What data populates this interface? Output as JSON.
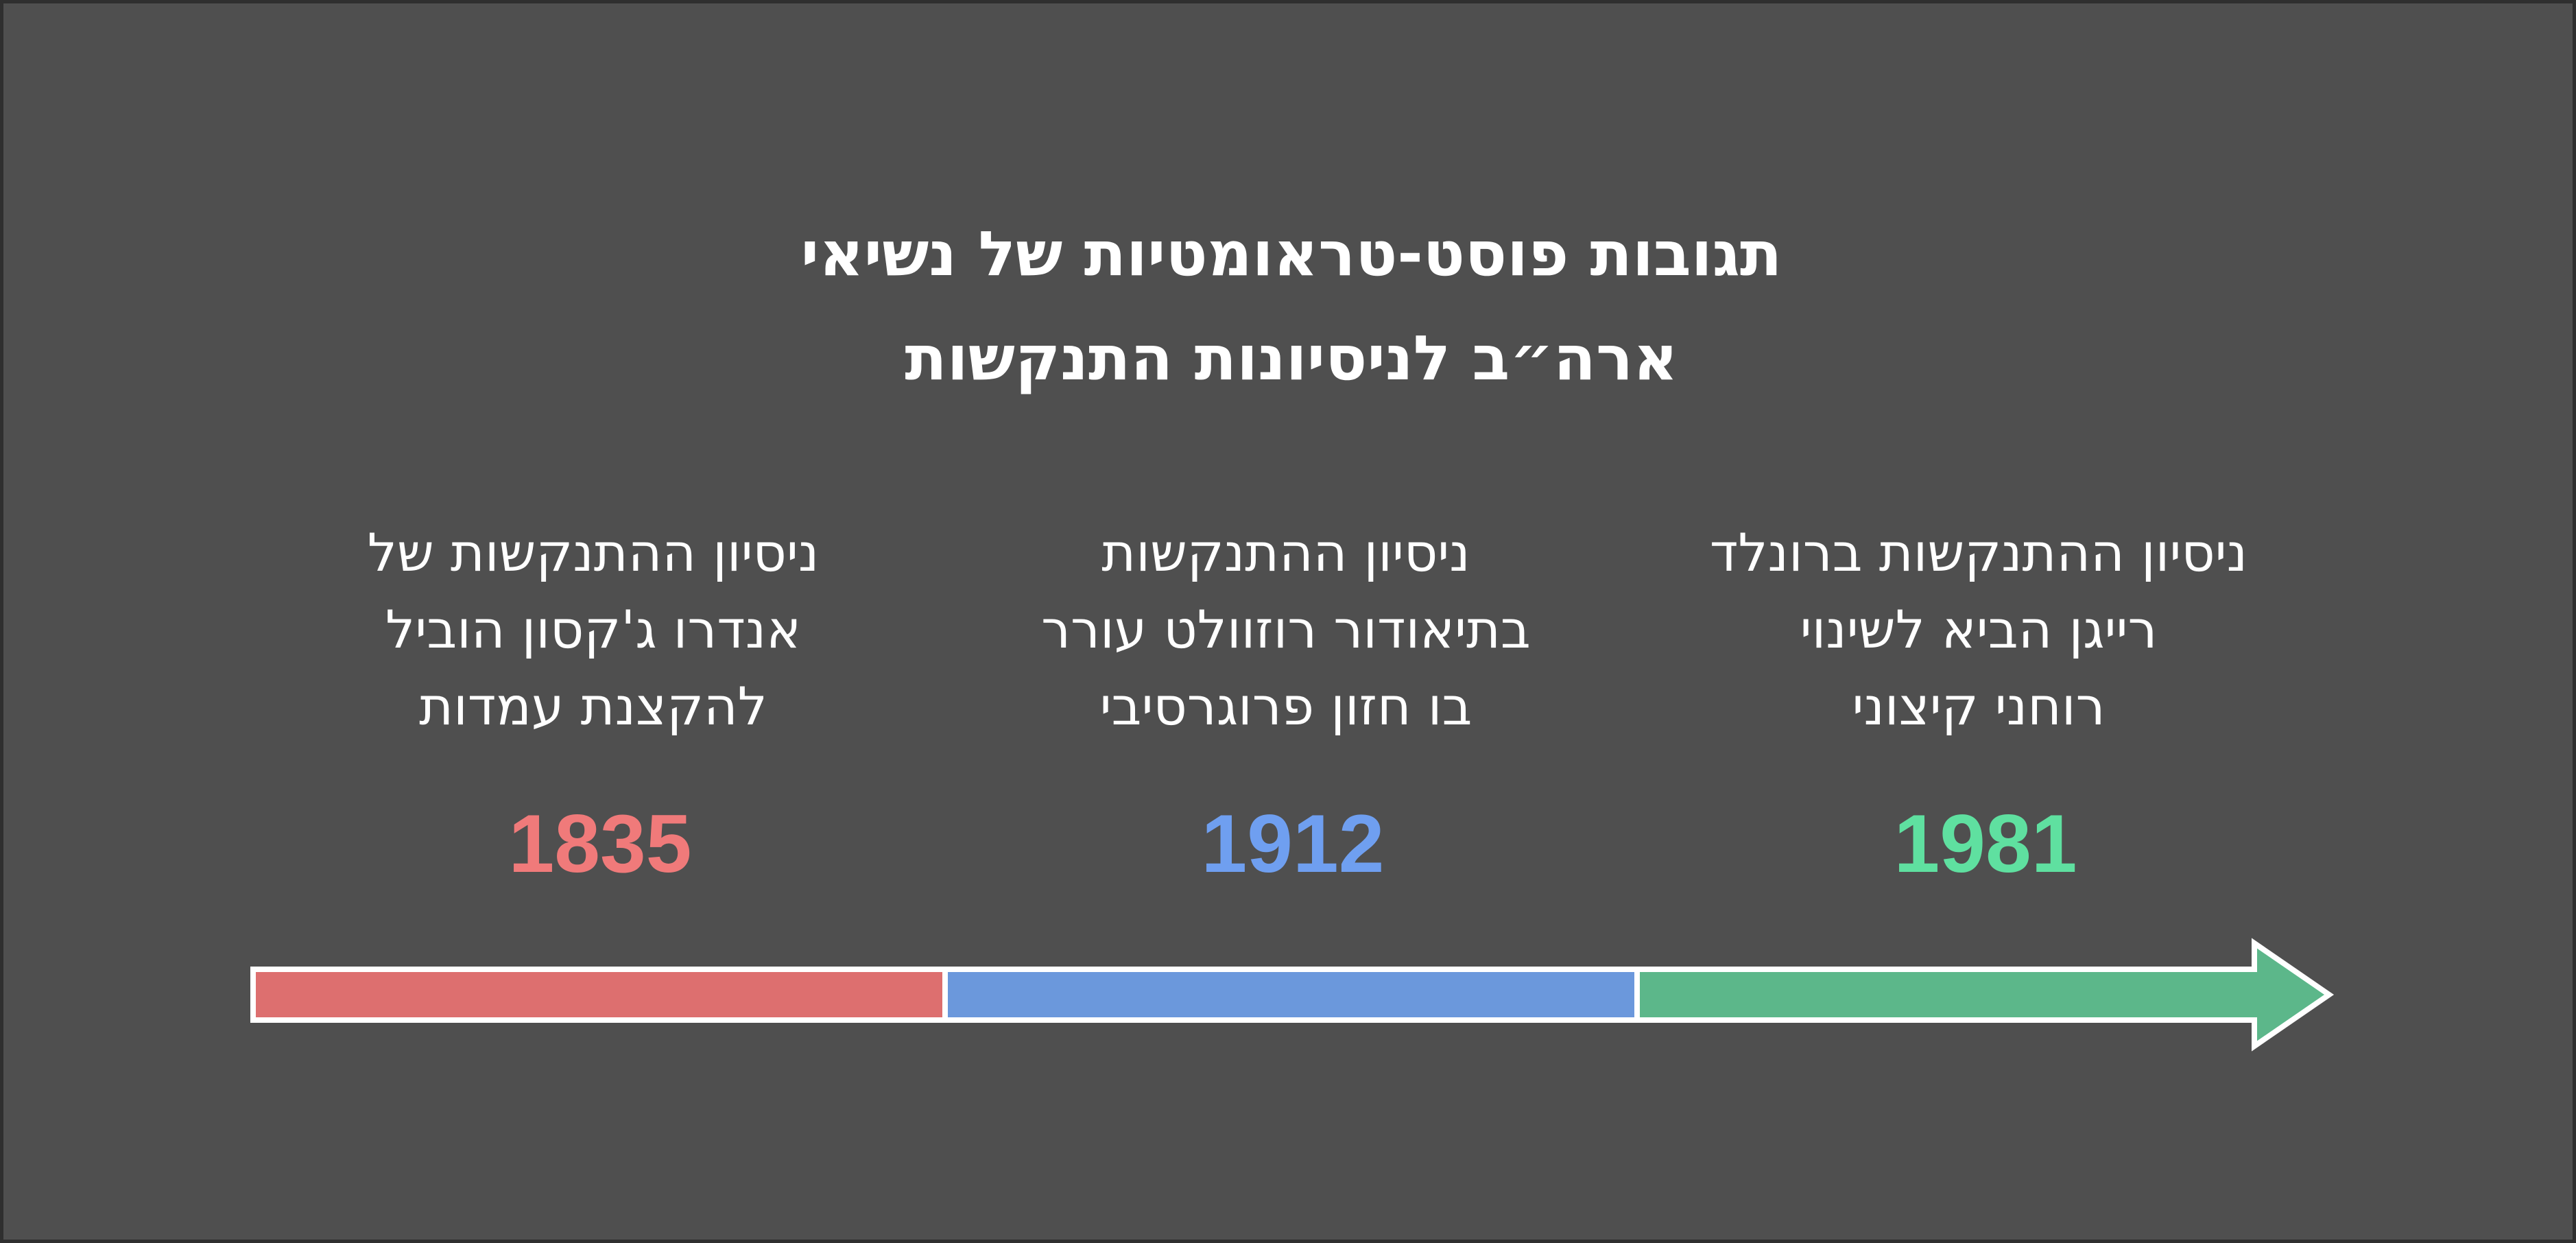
{
  "title": {
    "line1": "תגובות פוסט-טראומטיות של נשיאי",
    "line2": "ארה״ב לניסיונות התנקשות"
  },
  "events": [
    {
      "year": "1835",
      "lines": [
        "ניסיון ההתנקשות של",
        "אנדרו ג'קסון הוביל",
        "להקצנת עמדות"
      ],
      "color": "#f07a7a",
      "segment_color": "#dd6f6f"
    },
    {
      "year": "1912",
      "lines": [
        "ניסיון ההתנקשות",
        "בתיאודור רוזוולט עורר",
        "בו חזון פרוגרסיבי"
      ],
      "color": "#6f9ff0",
      "segment_color": "#6b98dc"
    },
    {
      "year": "1981",
      "lines": [
        "ניסיון ההתנקשות ברונלד",
        "רייגן הביא לשינוי",
        "רוחני קיצוני"
      ],
      "color": "#5fe0a0",
      "segment_color": "#5cb78a"
    }
  ],
  "colors": {
    "background": "#4f4f4f",
    "border": "#2f2f2f",
    "text": "#ffffff",
    "arrow_outline": "#ffffff"
  }
}
